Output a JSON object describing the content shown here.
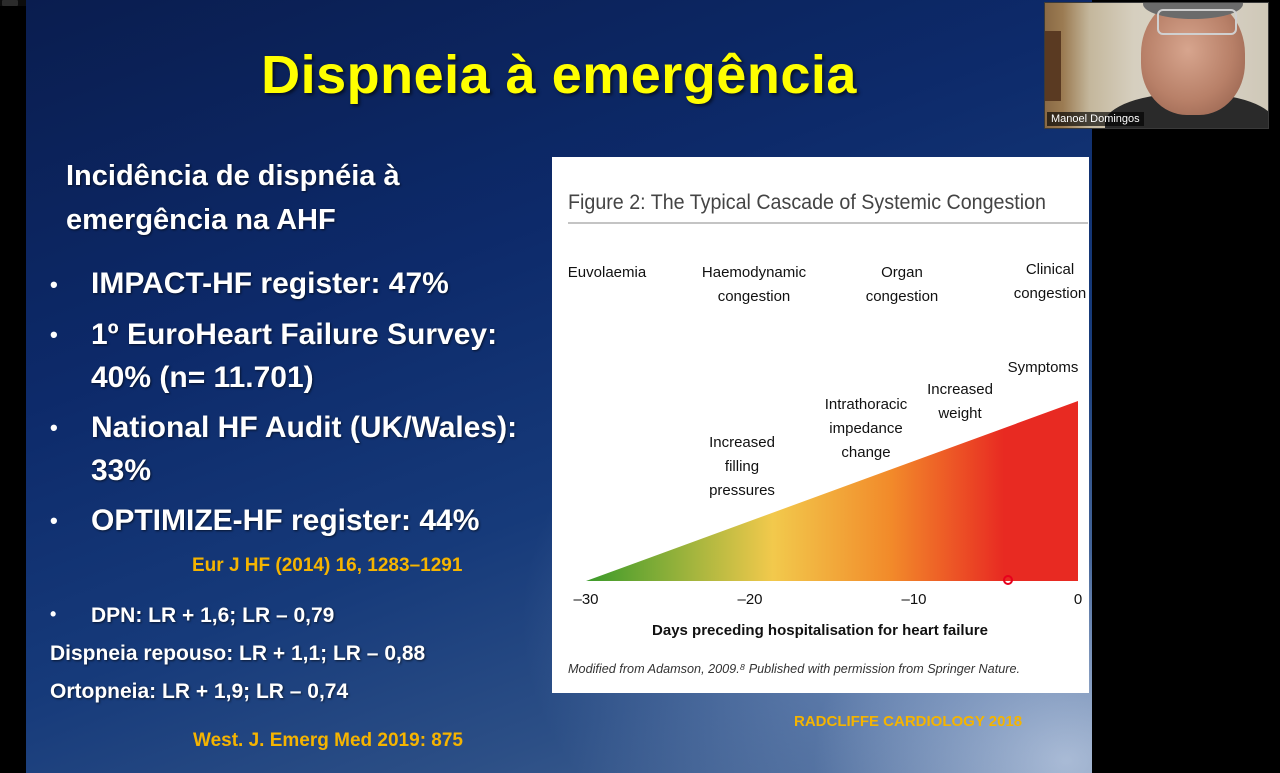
{
  "slide": {
    "title": "Dispneia à emergência",
    "subtitle": "Incidência de dispnéia à emergência na AHF",
    "bullets": [
      {
        "line1": "IMPACT-HF register: 47%",
        "line2": ""
      },
      {
        "line1": "1º EuroHeart Failure Survey:",
        "line2": "40% (n= 11.701)"
      },
      {
        "line1": "National HF Audit (UK/Wales):",
        "line2": "33%"
      },
      {
        "line1": "OPTIMIZE-HF register: 44%",
        "line2": ""
      }
    ],
    "ref1": "Eur J HF (2014) 16, 1283–1291",
    "stats": {
      "dpn": "DPN: LR + 1,6;    LR – 0,79",
      "dispneia_repouso": "Dispneia repouso: LR + 1,1;    LR – 0,88",
      "ortopneia": "Ortopneia: LR + 1,9;    LR – 0,74"
    },
    "ref2": "West. J. Emerg Med 2019: 875",
    "ref3": "RADCLIFFE CARDIOLOGY 2018",
    "bullet_glyph": "•"
  },
  "figure": {
    "title": "Figure 2: The Typical Cascade of Systemic Congestion",
    "stages": [
      {
        "line1": "Euvolaemia",
        "line2": ""
      },
      {
        "line1": "Haemodynamic",
        "line2": "congestion"
      },
      {
        "line1": "Organ",
        "line2": "congestion"
      },
      {
        "line1": "Clinical",
        "line2": "congestion"
      }
    ],
    "annotations": [
      {
        "lines": [
          "Increased",
          "filling",
          "pressures"
        ]
      },
      {
        "lines": [
          "Intrathoracic",
          "impedance",
          "change"
        ]
      },
      {
        "lines": [
          "Increased",
          "weight"
        ]
      },
      {
        "lines": [
          "Symptoms"
        ]
      }
    ],
    "x_ticks": [
      "–30",
      "–20",
      "–10",
      "0"
    ],
    "x_label": "Days preceding hospitalisation for heart failure",
    "footnote": "Modified from Adamson, 2009.⁸ Published with permission from Springer Nature.",
    "gradient_colors": [
      "#3a9a2a",
      "#f2c94c",
      "#f28a2a",
      "#e82a22"
    ]
  },
  "video": {
    "participant_name": "Manoel Domingos"
  }
}
